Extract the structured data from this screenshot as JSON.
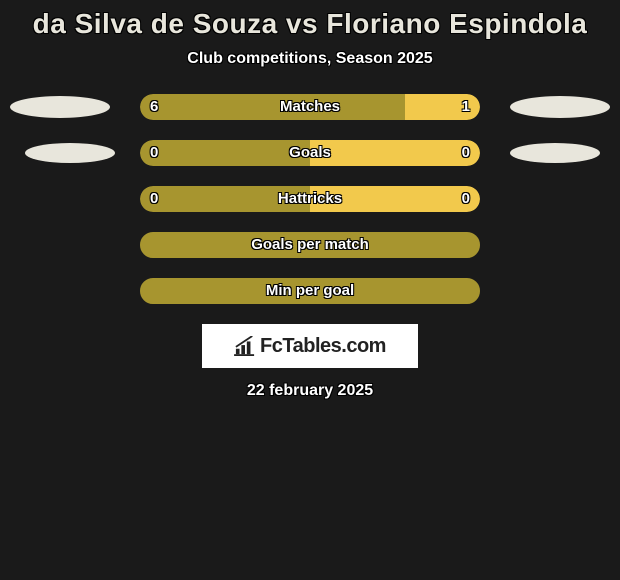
{
  "title": "da Silva de Souza vs Floriano Espindola",
  "subtitle": "Club competitions, Season 2025",
  "date": "22 february 2025",
  "logo_text": "FcTables.com",
  "background_color": "#1a1a1a",
  "color_left": "#a7952f",
  "color_right": "#f2c94c",
  "color_empty_border": "#a7952f",
  "ellipse_color": "#e8e6dc",
  "bar_track_width": 340,
  "stats": [
    {
      "label": "Matches",
      "left_val": "6",
      "right_val": "1",
      "left_pct": 78,
      "right_pct": 22,
      "filled": true,
      "ellipses": "big"
    },
    {
      "label": "Goals",
      "left_val": "0",
      "right_val": "0",
      "left_pct": 50,
      "right_pct": 50,
      "filled": true,
      "ellipses": "small"
    },
    {
      "label": "Hattricks",
      "left_val": "0",
      "right_val": "0",
      "left_pct": 50,
      "right_pct": 50,
      "filled": true,
      "ellipses": "none"
    },
    {
      "label": "Goals per match",
      "left_val": "",
      "right_val": "",
      "left_pct": 0,
      "right_pct": 0,
      "filled": false,
      "ellipses": "none"
    },
    {
      "label": "Min per goal",
      "left_val": "",
      "right_val": "",
      "left_pct": 0,
      "right_pct": 0,
      "filled": false,
      "ellipses": "none"
    }
  ]
}
